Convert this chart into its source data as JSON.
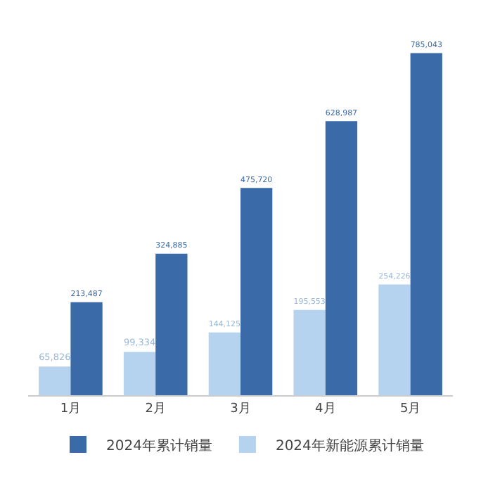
{
  "chart_data": {
    "type": "bar",
    "categories": [
      "1月",
      "2月",
      "3月",
      "4月",
      "5月"
    ],
    "series": [
      {
        "name": "2024年新能源累计销量",
        "color": "#b5d3ee",
        "values": [
          65826,
          99334,
          144125,
          195553,
          254226
        ],
        "value_labels": [
          "65,826",
          "99,334",
          "144,125",
          "195,553",
          "254,226"
        ]
      },
      {
        "name": "2024年累计销量",
        "color": "#3a6aa8",
        "values": [
          213487,
          324885,
          475720,
          628987,
          785043
        ],
        "value_labels": [
          "213,487",
          "324,885",
          "475,720",
          "628,987",
          "785,043"
        ]
      }
    ],
    "legend": "bottom",
    "grid": false
  }
}
